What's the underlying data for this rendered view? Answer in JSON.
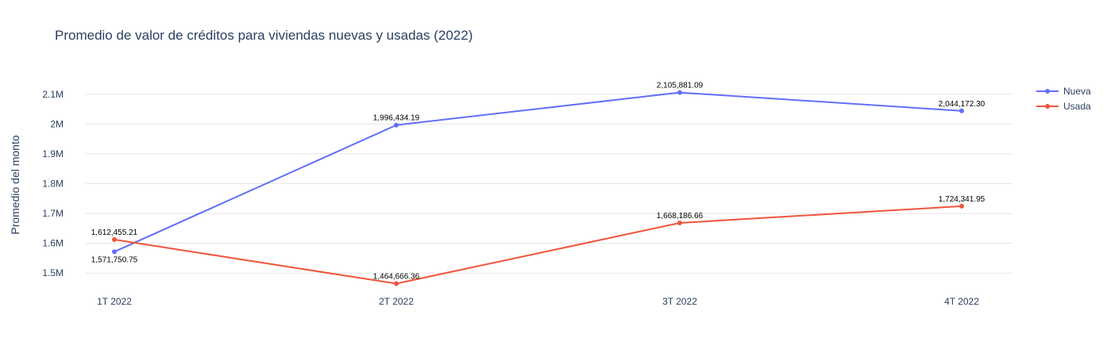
{
  "chart_data": {
    "type": "line",
    "title": "Promedio de valor de créditos para viviendas nuevas y usadas (2022)",
    "xlabel": "",
    "ylabel": "Promedio del monto",
    "categories": [
      "1T 2022",
      "2T 2022",
      "3T 2022",
      "4T 2022"
    ],
    "ylim": [
      1450000,
      2150000
    ],
    "yticks": [
      1500000,
      1600000,
      1700000,
      1800000,
      1900000,
      2000000,
      2100000
    ],
    "ytick_labels": [
      "1.5M",
      "1.6M",
      "1.7M",
      "1.8M",
      "1.9M",
      "2M",
      "2.1M"
    ],
    "grid": true,
    "legend_position": "top-right",
    "series": [
      {
        "name": "Nueva",
        "color": "#636efa",
        "values": [
          1571750.75,
          1996434.19,
          2105881.09,
          2044172.3
        ],
        "labels": [
          "1,571,750.75",
          "1,996,434.19",
          "2,105,881.09",
          "2,044,172.30"
        ]
      },
      {
        "name": "Usada",
        "color": "#ef553b",
        "values": [
          1612455.21,
          1464666.36,
          1668186.66,
          1724341.95
        ],
        "labels": [
          "1,612,455.21",
          "1,464,666.36",
          "1,668,186.66",
          "1,724,341.95"
        ]
      }
    ]
  }
}
